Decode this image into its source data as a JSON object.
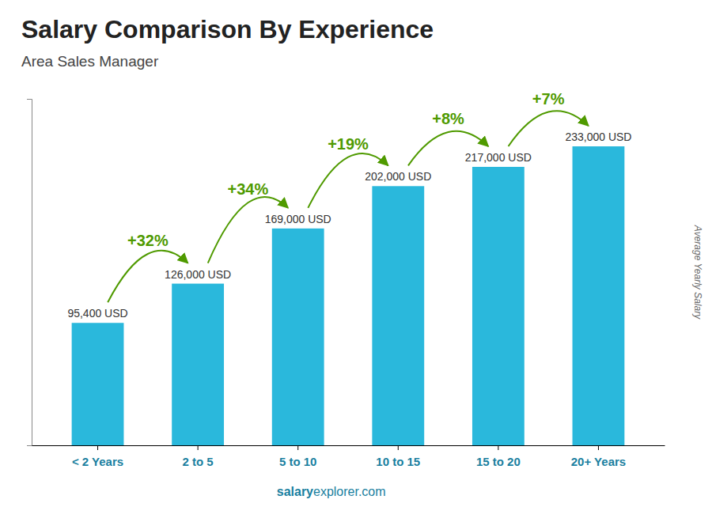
{
  "chart_data": {
    "type": "bar",
    "title": "Salary Comparison By Experience",
    "subtitle": "Area Sales Manager",
    "ylabel": "Average Yearly Salary",
    "categories": [
      "< 2 Years",
      "2 to 5",
      "5 to 10",
      "10 to 15",
      "15 to 20",
      "20+ Years"
    ],
    "values": [
      95400,
      126000,
      169000,
      202000,
      217000,
      233000
    ],
    "value_labels": [
      "95,400 USD",
      "126,000 USD",
      "169,000 USD",
      "202,000 USD",
      "217,000 USD",
      "233,000 USD"
    ],
    "data_labels": true,
    "annotations": [
      "+32%",
      "+34%",
      "+19%",
      "+8%",
      "+7%"
    ],
    "footer": [
      "salary",
      "explorer.com"
    ],
    "color": "#2ab8dc",
    "ylim": [
      0,
      270000
    ],
    "tick_labels": "x",
    "grid": false
  }
}
